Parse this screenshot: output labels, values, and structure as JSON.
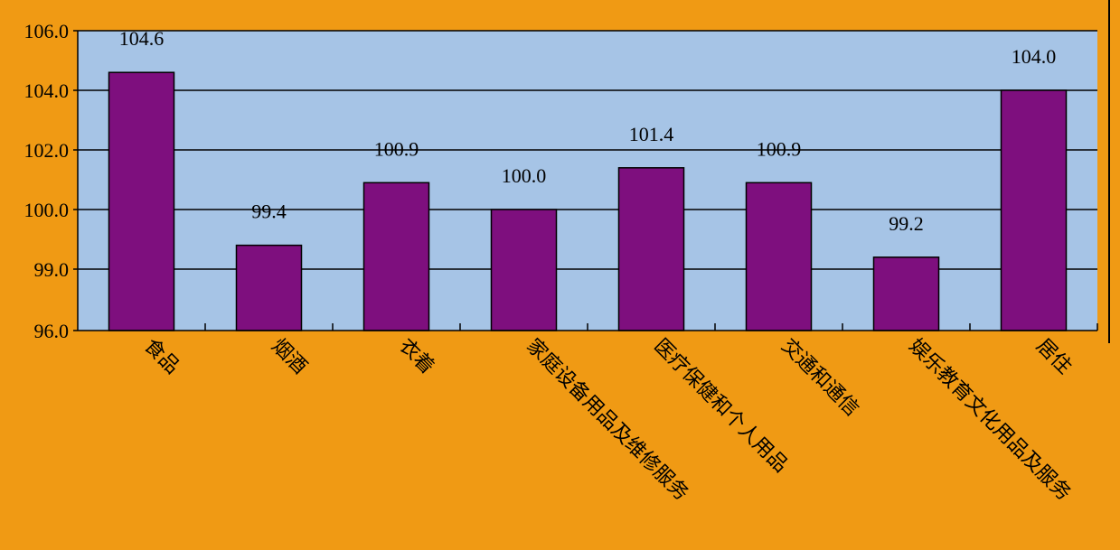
{
  "chart_data": {
    "type": "bar",
    "categories": [
      "食品",
      "烟酒",
      "衣着",
      "家庭设备用品及维修服务",
      "医疗保健和个人用品",
      "交通和通信",
      "娱乐教育文化用品及服务",
      "居住"
    ],
    "values": [
      104.6,
      99.4,
      100.9,
      100.0,
      101.4,
      100.9,
      99.2,
      104.0
    ],
    "data_labels": [
      "104.6",
      "99.4",
      "100.9",
      "100.0",
      "101.4",
      "100.9",
      "99.2",
      "104.0"
    ],
    "y_ticks": [
      "106.0",
      "104.0",
      "102.0",
      "100.0",
      "99.0",
      "96.0"
    ],
    "grid": true,
    "colors": {
      "background": "#F09A14",
      "plot_area": "#A6C4E6",
      "bar": "#7E0F7E",
      "axis": "#000000"
    }
  }
}
